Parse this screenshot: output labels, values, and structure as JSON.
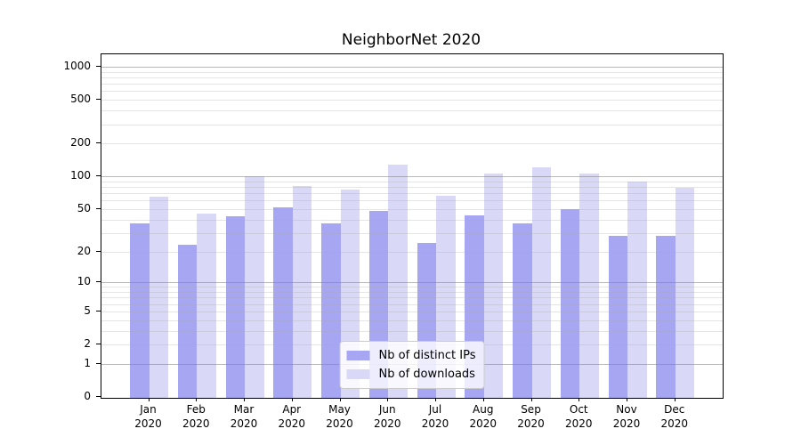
{
  "chart_data": {
    "type": "bar",
    "title": "NeighborNet 2020",
    "xlabel": "",
    "ylabel": "",
    "categories": [
      "Jan 2020",
      "Feb 2020",
      "Mar 2020",
      "Apr 2020",
      "May 2020",
      "Jun 2020",
      "Jul 2020",
      "Aug 2020",
      "Sep 2020",
      "Oct 2020",
      "Nov 2020",
      "Dec 2020"
    ],
    "series": [
      {
        "name": "Nb of distinct IPs",
        "color": "#a6a6f2",
        "values": [
          37,
          23,
          43,
          52,
          37,
          48,
          24,
          44,
          37,
          50,
          28,
          28
        ]
      },
      {
        "name": "Nb of downloads",
        "color": "#d9d9f7",
        "values": [
          65,
          45,
          100,
          82,
          76,
          127,
          66,
          106,
          122,
          106,
          90,
          79
        ]
      }
    ],
    "yscale": "log1p",
    "ylim": [
      0,
      1300
    ],
    "yticks": [
      1000,
      500,
      200,
      100,
      50,
      20,
      10,
      5,
      2,
      1,
      0
    ],
    "grid_major": [
      1,
      10,
      100,
      1000
    ],
    "grid_minor": [
      2,
      3,
      4,
      5,
      6,
      7,
      8,
      9,
      20,
      30,
      40,
      50,
      60,
      70,
      80,
      90,
      200,
      300,
      400,
      500,
      600,
      700,
      800,
      900
    ],
    "grid_major_color": "rgba(130,130,130,0.55)",
    "grid_minor_color": "rgba(170,170,170,0.30)",
    "legend_position": "lower center"
  }
}
